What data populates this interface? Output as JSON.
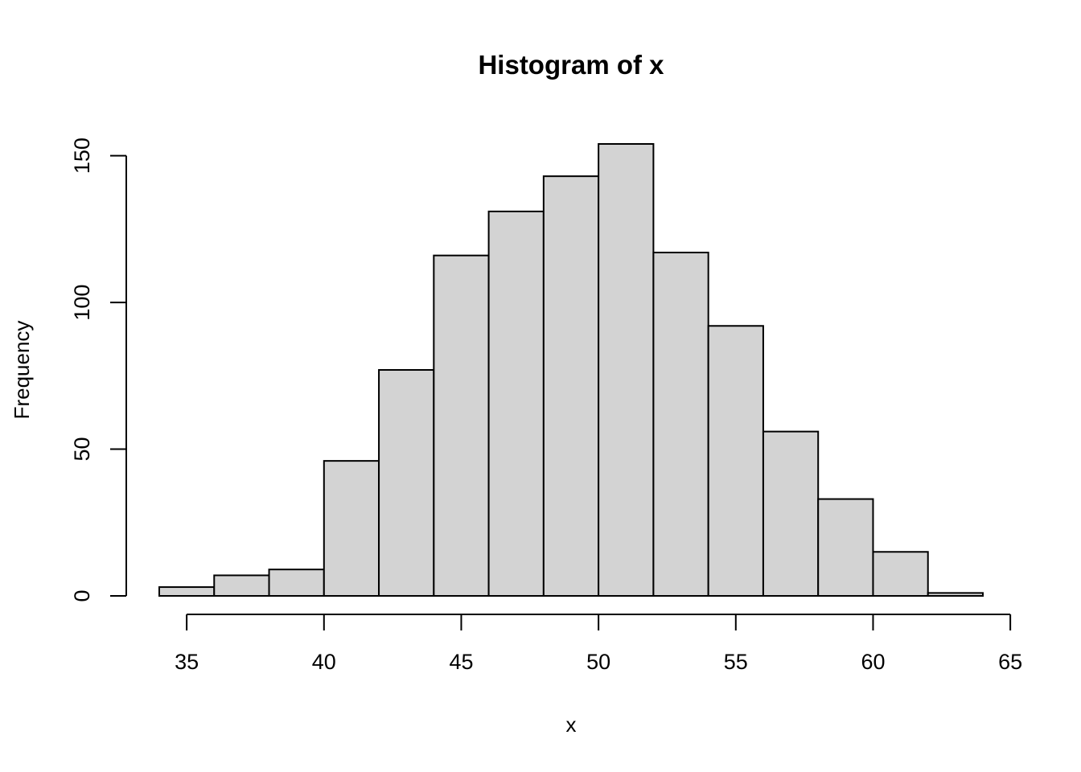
{
  "chart_data": {
    "type": "bar",
    "title": "Histogram of x",
    "xlabel": "x",
    "ylabel": "Frequency",
    "bin_edges": [
      34,
      36,
      38,
      40,
      42,
      44,
      46,
      48,
      50,
      52,
      54,
      56,
      58,
      60,
      62,
      64
    ],
    "values": [
      3,
      7,
      9,
      46,
      77,
      116,
      131,
      143,
      154,
      117,
      92,
      56,
      33,
      15,
      1
    ],
    "xlim": [
      34,
      64
    ],
    "ylim": [
      0,
      154
    ],
    "x_ticks": [
      35,
      40,
      45,
      50,
      55,
      60,
      65
    ],
    "y_ticks": [
      0,
      50,
      100,
      150
    ],
    "bar_fill": "#d3d3d3",
    "bar_stroke": "#000000",
    "grid": false,
    "legend": "none"
  }
}
